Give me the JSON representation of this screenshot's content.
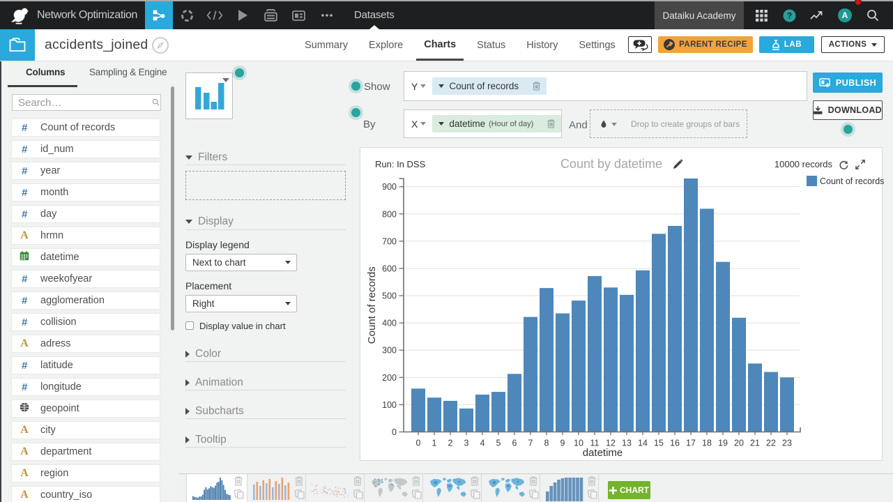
{
  "topbar": {
    "project_name": "Network Optimization",
    "section": "Datasets",
    "academy_label": "Dataiku Academy",
    "avatar_initial": "A"
  },
  "header": {
    "dataset_name": "accidents_joined",
    "tabs": [
      {
        "label": "Summary",
        "active": false
      },
      {
        "label": "Explore",
        "active": false
      },
      {
        "label": "Charts",
        "active": true
      },
      {
        "label": "Status",
        "active": false
      },
      {
        "label": "History",
        "active": false
      },
      {
        "label": "Settings",
        "active": false
      }
    ],
    "parent_recipe_label": "PARENT RECIPE",
    "lab_label": "LAB",
    "actions_label": "ACTIONS"
  },
  "sidebar": {
    "tabs": [
      "Columns",
      "Sampling & Engine"
    ],
    "active_tab": "Columns",
    "search_placeholder": "Search…",
    "columns": [
      {
        "name": "Count of records",
        "type": "number"
      },
      {
        "name": "id_num",
        "type": "number"
      },
      {
        "name": "year",
        "type": "number"
      },
      {
        "name": "month",
        "type": "number"
      },
      {
        "name": "day",
        "type": "number"
      },
      {
        "name": "hrmn",
        "type": "text"
      },
      {
        "name": "datetime",
        "type": "date"
      },
      {
        "name": "weekofyear",
        "type": "number"
      },
      {
        "name": "agglomeration",
        "type": "number"
      },
      {
        "name": "collision",
        "type": "number"
      },
      {
        "name": "adress",
        "type": "text"
      },
      {
        "name": "latitude",
        "type": "number"
      },
      {
        "name": "longitude",
        "type": "number"
      },
      {
        "name": "geopoint",
        "type": "geo"
      },
      {
        "name": "city",
        "type": "text"
      },
      {
        "name": "department",
        "type": "text"
      },
      {
        "name": "region",
        "type": "text"
      },
      {
        "name": "country_iso",
        "type": "text"
      }
    ]
  },
  "config": {
    "filters_label": "Filters",
    "display_label": "Display",
    "display_legend_label": "Display legend",
    "display_legend_value": "Next to chart",
    "placement_label": "Placement",
    "placement_value": "Right",
    "value_checkbox_label": "Display value in chart",
    "value_checkbox_checked": false,
    "collapsed_sections": [
      "Color",
      "Animation",
      "Subcharts",
      "Tooltip"
    ]
  },
  "controls": {
    "show_label": "Show",
    "by_label": "By",
    "and_label": "And",
    "y_axis_letter": "Y",
    "x_axis_letter": "X",
    "y_measure": "Count of records",
    "x_dimension": "datetime",
    "x_dimension_detail": "(Hour of day)",
    "drop_placeholder": "Drop to create groups of bars",
    "publish_label": "PUBLISH",
    "download_label": "DOWNLOAD"
  },
  "chart": {
    "run_label": "Run: In DSS",
    "title": "Count by datetime",
    "records_label": "10000 records",
    "legend_label": "Count of records"
  },
  "chart_data": {
    "type": "bar",
    "title": "Count by datetime",
    "xlabel": "datetime",
    "ylabel": "Count of records",
    "series_name": "Count of records",
    "categories": [
      "0",
      "1",
      "2",
      "3",
      "4",
      "5",
      "6",
      "7",
      "8",
      "9",
      "10",
      "11",
      "12",
      "13",
      "14",
      "15",
      "16",
      "17",
      "18",
      "19",
      "20",
      "21",
      "22",
      "23"
    ],
    "values": [
      159,
      126,
      114,
      86,
      137,
      147,
      213,
      422,
      528,
      435,
      482,
      572,
      530,
      503,
      593,
      727,
      756,
      930,
      819,
      624,
      419,
      251,
      220,
      200
    ],
    "ylim": [
      0,
      930
    ],
    "ytick_step": 100,
    "grid": true,
    "legend_position": "right",
    "bar_color": "#4e87b9"
  },
  "thumbnails": {
    "tiles": [
      {
        "type": "histogram",
        "selected": true
      },
      {
        "type": "grouped-bars",
        "selected": false
      },
      {
        "type": "scatter",
        "selected": false
      },
      {
        "type": "map-scatter",
        "selected": false
      },
      {
        "type": "map-filled",
        "selected": false
      },
      {
        "type": "map-filled",
        "selected": false
      },
      {
        "type": "dense-bars",
        "selected": false
      }
    ],
    "add_chart_label": "CHART"
  },
  "colors": {
    "accent_blue": "#29a9dc",
    "teal": "#2aa49c",
    "orange": "#f2a33c",
    "green_button": "#74b32c",
    "bar_blue": "#4e87b9",
    "thumb_blue": "#4a7dac",
    "thumb_light_blue": "#9db8d8",
    "thumb_orange": "#f0a068",
    "map_blue": "#6cb4dc"
  }
}
